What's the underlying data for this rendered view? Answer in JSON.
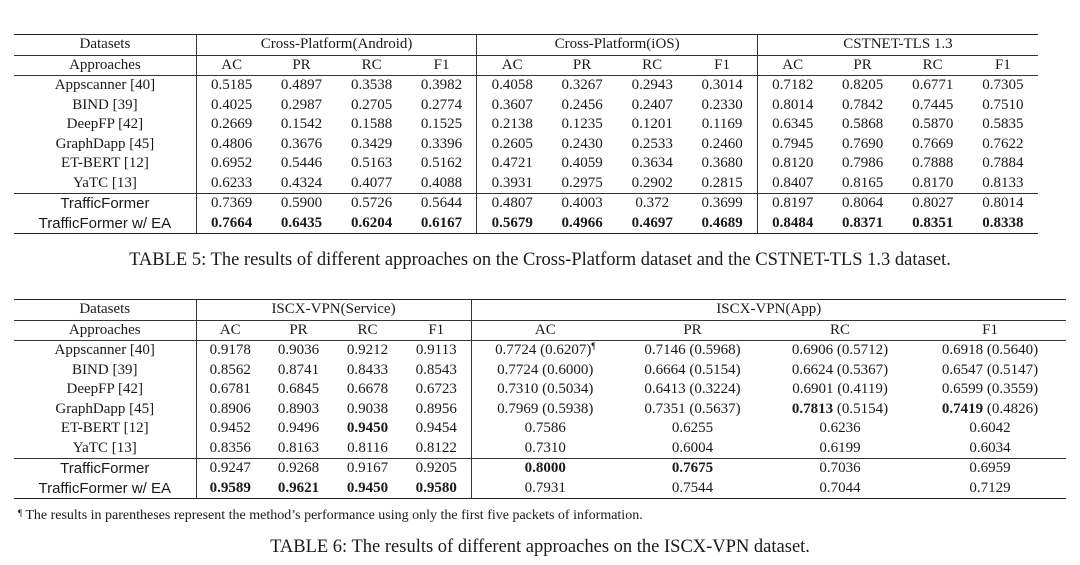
{
  "table5": {
    "header": {
      "datasets_label": "Datasets",
      "approaches_label": "Approaches",
      "groups": [
        "Cross-Platform(Android)",
        "Cross-Platform(iOS)",
        "CSTNET-TLS 1.3"
      ],
      "metrics": [
        "AC",
        "PR",
        "RC",
        "F1"
      ]
    },
    "rows": [
      {
        "name": "Appscanner [40]",
        "values": [
          "0.5185",
          "0.4897",
          "0.3538",
          "0.3982",
          "0.4058",
          "0.3267",
          "0.2943",
          "0.3014",
          "0.7182",
          "0.8205",
          "0.6771",
          "0.7305"
        ]
      },
      {
        "name": "BIND [39]",
        "values": [
          "0.4025",
          "0.2987",
          "0.2705",
          "0.2774",
          "0.3607",
          "0.2456",
          "0.2407",
          "0.2330",
          "0.8014",
          "0.7842",
          "0.7445",
          "0.7510"
        ]
      },
      {
        "name": "DeepFP [42]",
        "values": [
          "0.2669",
          "0.1542",
          "0.1588",
          "0.1525",
          "0.2138",
          "0.1235",
          "0.1201",
          "0.1169",
          "0.6345",
          "0.5868",
          "0.5870",
          "0.5835"
        ]
      },
      {
        "name": "GraphDapp [45]",
        "values": [
          "0.4806",
          "0.3676",
          "0.3429",
          "0.3396",
          "0.2605",
          "0.2430",
          "0.2533",
          "0.2460",
          "0.7945",
          "0.7690",
          "0.7669",
          "0.7622"
        ]
      },
      {
        "name": "ET-BERT [12]",
        "values": [
          "0.6952",
          "0.5446",
          "0.5163",
          "0.5162",
          "0.4721",
          "0.4059",
          "0.3634",
          "0.3680",
          "0.8120",
          "0.7986",
          "0.7888",
          "0.7884"
        ]
      },
      {
        "name": "YaTC [13]",
        "values": [
          "0.6233",
          "0.4324",
          "0.4077",
          "0.4088",
          "0.3931",
          "0.2975",
          "0.2902",
          "0.2815",
          "0.8407",
          "0.8165",
          "0.8170",
          "0.8133"
        ]
      },
      {
        "name": "TrafficFormer",
        "values": [
          "0.7369",
          "0.5900",
          "0.5726",
          "0.5644",
          "0.4807",
          "0.4003",
          "0.372",
          "0.3699",
          "0.8197",
          "0.8064",
          "0.8027",
          "0.8014"
        ]
      },
      {
        "name": "TrafficFormer w/ EA",
        "values": [
          "0.7664",
          "0.6435",
          "0.6204",
          "0.6167",
          "0.5679",
          "0.4966",
          "0.4697",
          "0.4689",
          "0.8484",
          "0.8371",
          "0.8351",
          "0.8338"
        ]
      }
    ],
    "caption": "TABLE 5: The results of different approaches on the Cross-Platform dataset and the CSTNET-TLS 1.3 dataset."
  },
  "table6": {
    "header": {
      "datasets_label": "Datasets",
      "approaches_label": "Approaches",
      "groups": [
        "ISCX-VPN(Service)",
        "ISCX-VPN(App)"
      ],
      "metrics": [
        "AC",
        "PR",
        "RC",
        "F1"
      ]
    },
    "rows": [
      {
        "name": "Appscanner [40]",
        "service": [
          "0.9178",
          "0.9036",
          "0.9212",
          "0.9113"
        ],
        "app": [
          "0.7724 (0.6207)",
          "0.7146 (0.5968)",
          "0.6906 (0.5712)",
          "0.6918 (0.5640)"
        ]
      },
      {
        "name": "BIND [39]",
        "service": [
          "0.8562",
          "0.8741",
          "0.8433",
          "0.8543"
        ],
        "app": [
          "0.7724 (0.6000)",
          "0.6664 (0.5154)",
          "0.6624 (0.5367)",
          "0.6547 (0.5147)"
        ]
      },
      {
        "name": "DeepFP [42]",
        "service": [
          "0.6781",
          "0.6845",
          "0.6678",
          "0.6723"
        ],
        "app": [
          "0.7310 (0.5034)",
          "0.6413 (0.3224)",
          "0.6901 (0.4119)",
          "0.6599 (0.3559)"
        ]
      },
      {
        "name": "GraphDapp [45]",
        "service": [
          "0.8906",
          "0.8903",
          "0.9038",
          "0.8956"
        ],
        "app_plain": [
          "0.7969 (0.5938)",
          "0.7351 (0.5637)"
        ],
        "app_rc_bold": "0.7813",
        "app_rc_rest": " (0.5154)",
        "app_f1_bold": "0.7419",
        "app_f1_rest": " (0.4826)"
      },
      {
        "name": "ET-BERT [12]",
        "service": [
          "0.9452",
          "0.9496",
          "0.9450",
          "0.9454"
        ],
        "app": [
          "0.7586",
          "0.6255",
          "0.6236",
          "0.6042"
        ]
      },
      {
        "name": "YaTC [13]",
        "service": [
          "0.8356",
          "0.8163",
          "0.8116",
          "0.8122"
        ],
        "app": [
          "0.7310",
          "0.6004",
          "0.6199",
          "0.6034"
        ]
      },
      {
        "name": "TrafficFormer",
        "service": [
          "0.9247",
          "0.9268",
          "0.9167",
          "0.9205"
        ],
        "app": [
          "0.8000",
          "0.7675",
          "0.7036",
          "0.6959"
        ]
      },
      {
        "name": "TrafficFormer w/ EA",
        "service": [
          "0.9589",
          "0.9621",
          "0.9450",
          "0.9580"
        ],
        "app": [
          "0.7931",
          "0.7544",
          "0.7044",
          "0.7129"
        ]
      }
    ],
    "footnote_mark": "¶",
    "footnote": "The results in parentheses represent the method’s performance using only the first five packets of information.",
    "caption": "TABLE 6: The results of different approaches on the ISCX-VPN dataset."
  }
}
